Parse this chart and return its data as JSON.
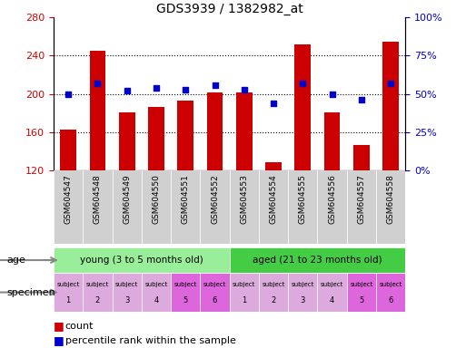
{
  "title": "GDS3939 / 1382982_at",
  "samples": [
    "GSM604547",
    "GSM604548",
    "GSM604549",
    "GSM604550",
    "GSM604551",
    "GSM604552",
    "GSM604553",
    "GSM604554",
    "GSM604555",
    "GSM604556",
    "GSM604557",
    "GSM604558"
  ],
  "counts": [
    163,
    245,
    181,
    186,
    193,
    202,
    202,
    129,
    252,
    181,
    147,
    255
  ],
  "percentile_ranks": [
    50,
    57,
    52,
    54,
    53,
    56,
    53,
    44,
    57,
    50,
    46,
    57
  ],
  "ylim_left": [
    120,
    280
  ],
  "ylim_right": [
    0,
    100
  ],
  "yticks_left": [
    120,
    160,
    200,
    240,
    280
  ],
  "yticks_right": [
    0,
    25,
    50,
    75,
    100
  ],
  "bar_color": "#cc0000",
  "dot_color": "#0000cc",
  "age_groups": [
    {
      "label": "young (3 to 5 months old)",
      "start": 0,
      "end": 6,
      "color": "#99ee99"
    },
    {
      "label": "aged (21 to 23 months old)",
      "start": 6,
      "end": 12,
      "color": "#44cc44"
    }
  ],
  "specimen_colors": [
    "#ddaadd",
    "#ddaadd",
    "#ddaadd",
    "#ddaadd",
    "#dd66dd",
    "#dd66dd",
    "#ddaadd",
    "#ddaadd",
    "#ddaadd",
    "#ddaadd",
    "#dd66dd",
    "#dd66dd"
  ],
  "grid_dotted_at": [
    160,
    200,
    240
  ],
  "bg_color": "#ffffff",
  "plot_bg": "#ffffff",
  "tick_label_color_left": "#cc0000",
  "tick_label_color_right": "#0000cc",
  "xticklabel_bg": "#d0d0d0"
}
